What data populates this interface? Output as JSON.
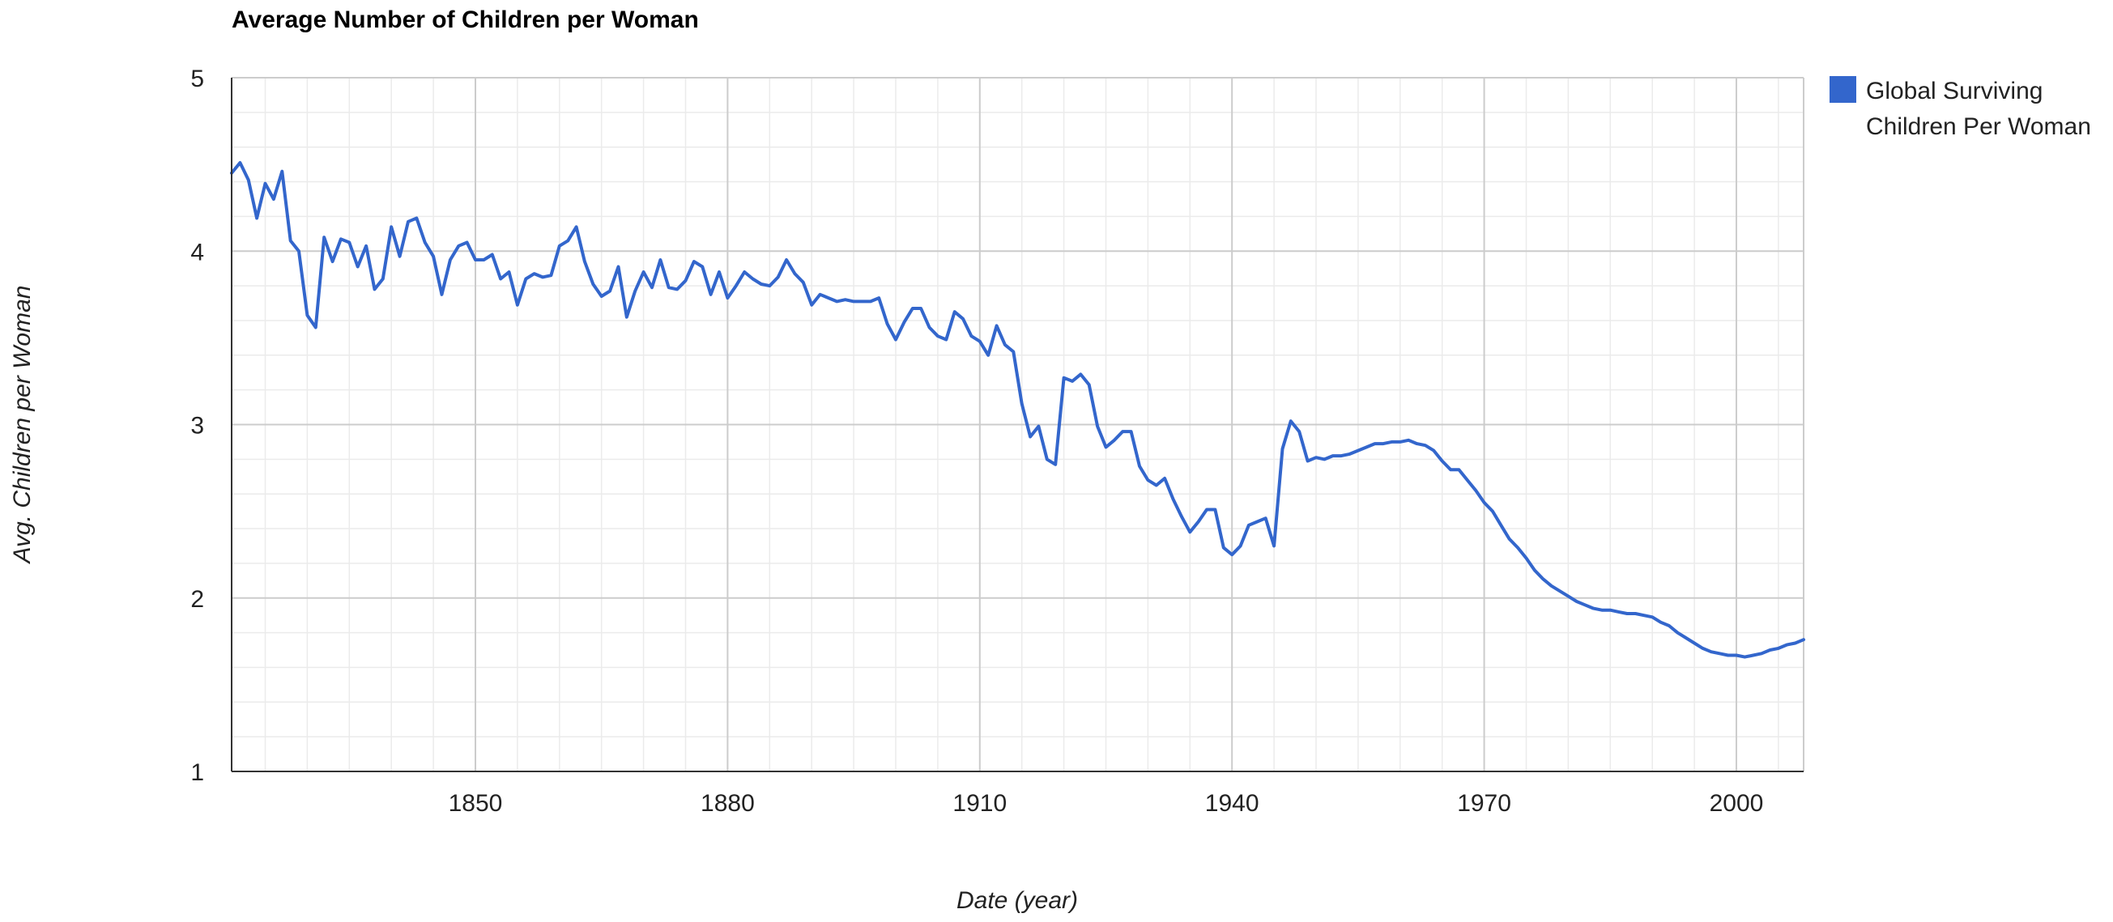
{
  "chart_data": {
    "type": "line",
    "title": "Average Number of Children per Woman",
    "xlabel": "Date (year)",
    "ylabel": "Avg. Children per Woman",
    "xlim": [
      1821,
      2008
    ],
    "ylim": [
      1,
      5
    ],
    "x_ticks": [
      1850,
      1880,
      1910,
      1940,
      1970,
      2000
    ],
    "y_ticks": [
      1,
      2,
      3,
      4,
      5
    ],
    "grid": true,
    "legend_position": "right",
    "series": [
      {
        "name": "Global Surviving Children Per Woman",
        "color": "#3366cc",
        "x": [
          1821,
          1822,
          1823,
          1824,
          1825,
          1826,
          1827,
          1828,
          1829,
          1830,
          1831,
          1832,
          1833,
          1834,
          1835,
          1836,
          1837,
          1838,
          1839,
          1840,
          1841,
          1842,
          1843,
          1844,
          1845,
          1846,
          1847,
          1848,
          1849,
          1850,
          1851,
          1852,
          1853,
          1854,
          1855,
          1856,
          1857,
          1858,
          1859,
          1860,
          1861,
          1862,
          1863,
          1864,
          1865,
          1866,
          1867,
          1868,
          1869,
          1870,
          1871,
          1872,
          1873,
          1874,
          1875,
          1876,
          1877,
          1878,
          1879,
          1880,
          1881,
          1882,
          1883,
          1884,
          1885,
          1886,
          1887,
          1888,
          1889,
          1890,
          1891,
          1892,
          1893,
          1894,
          1895,
          1896,
          1897,
          1898,
          1899,
          1900,
          1901,
          1902,
          1903,
          1904,
          1905,
          1906,
          1907,
          1908,
          1909,
          1910,
          1911,
          1912,
          1913,
          1914,
          1915,
          1916,
          1917,
          1918,
          1919,
          1920,
          1921,
          1922,
          1923,
          1924,
          1925,
          1926,
          1927,
          1928,
          1929,
          1930,
          1931,
          1932,
          1933,
          1934,
          1935,
          1936,
          1937,
          1938,
          1939,
          1940,
          1941,
          1942,
          1943,
          1944,
          1945,
          1946,
          1947,
          1948,
          1949,
          1950,
          1951,
          1952,
          1953,
          1954,
          1955,
          1956,
          1957,
          1958,
          1959,
          1960,
          1961,
          1962,
          1963,
          1964,
          1965,
          1966,
          1967,
          1968,
          1969,
          1970,
          1971,
          1972,
          1973,
          1974,
          1975,
          1976,
          1977,
          1978,
          1979,
          1980,
          1981,
          1982,
          1983,
          1984,
          1985,
          1986,
          1987,
          1988,
          1989,
          1990,
          1991,
          1992,
          1993,
          1994,
          1995,
          1996,
          1997,
          1998,
          1999,
          2000,
          2001,
          2002,
          2003,
          2004,
          2005,
          2006,
          2007,
          2008
        ],
        "values": [
          4.45,
          4.51,
          4.41,
          4.19,
          4.39,
          4.3,
          4.46,
          4.06,
          4.0,
          3.63,
          3.56,
          4.08,
          3.94,
          4.07,
          4.05,
          3.91,
          4.03,
          3.78,
          3.84,
          4.14,
          3.97,
          4.17,
          4.19,
          4.05,
          3.97,
          3.75,
          3.95,
          4.03,
          4.05,
          3.95,
          3.95,
          3.98,
          3.84,
          3.88,
          3.69,
          3.84,
          3.87,
          3.85,
          3.86,
          4.03,
          4.06,
          4.14,
          3.94,
          3.81,
          3.74,
          3.77,
          3.91,
          3.62,
          3.77,
          3.88,
          3.79,
          3.95,
          3.79,
          3.78,
          3.83,
          3.94,
          3.91,
          3.75,
          3.88,
          3.73,
          3.8,
          3.88,
          3.84,
          3.81,
          3.8,
          3.85,
          3.95,
          3.87,
          3.82,
          3.69,
          3.75,
          3.73,
          3.71,
          3.72,
          3.71,
          3.71,
          3.71,
          3.73,
          3.58,
          3.49,
          3.59,
          3.67,
          3.67,
          3.56,
          3.51,
          3.49,
          3.65,
          3.61,
          3.51,
          3.48,
          3.4,
          3.57,
          3.46,
          3.42,
          3.12,
          2.93,
          2.99,
          2.8,
          2.77,
          3.27,
          3.25,
          3.29,
          3.23,
          2.99,
          2.87,
          2.91,
          2.96,
          2.96,
          2.76,
          2.68,
          2.65,
          2.69,
          2.57,
          2.47,
          2.38,
          2.44,
          2.51,
          2.51,
          2.29,
          2.25,
          2.3,
          2.42,
          2.44,
          2.46,
          2.3,
          2.86,
          3.02,
          2.96,
          2.79,
          2.81,
          2.8,
          2.82,
          2.82,
          2.83,
          2.85,
          2.87,
          2.89,
          2.89,
          2.9,
          2.9,
          2.91,
          2.89,
          2.88,
          2.85,
          2.79,
          2.74,
          2.74,
          2.68,
          2.62,
          2.55,
          2.5,
          2.42,
          2.34,
          2.29,
          2.23,
          2.16,
          2.11,
          2.07,
          2.04,
          2.01,
          1.98,
          1.96,
          1.94,
          1.93,
          1.93,
          1.92,
          1.91,
          1.91,
          1.9,
          1.89,
          1.86,
          1.84,
          1.8,
          1.77,
          1.74,
          1.71,
          1.69,
          1.68,
          1.67,
          1.67,
          1.66,
          1.67,
          1.68,
          1.7,
          1.71,
          1.73,
          1.74,
          1.76
        ]
      }
    ]
  }
}
